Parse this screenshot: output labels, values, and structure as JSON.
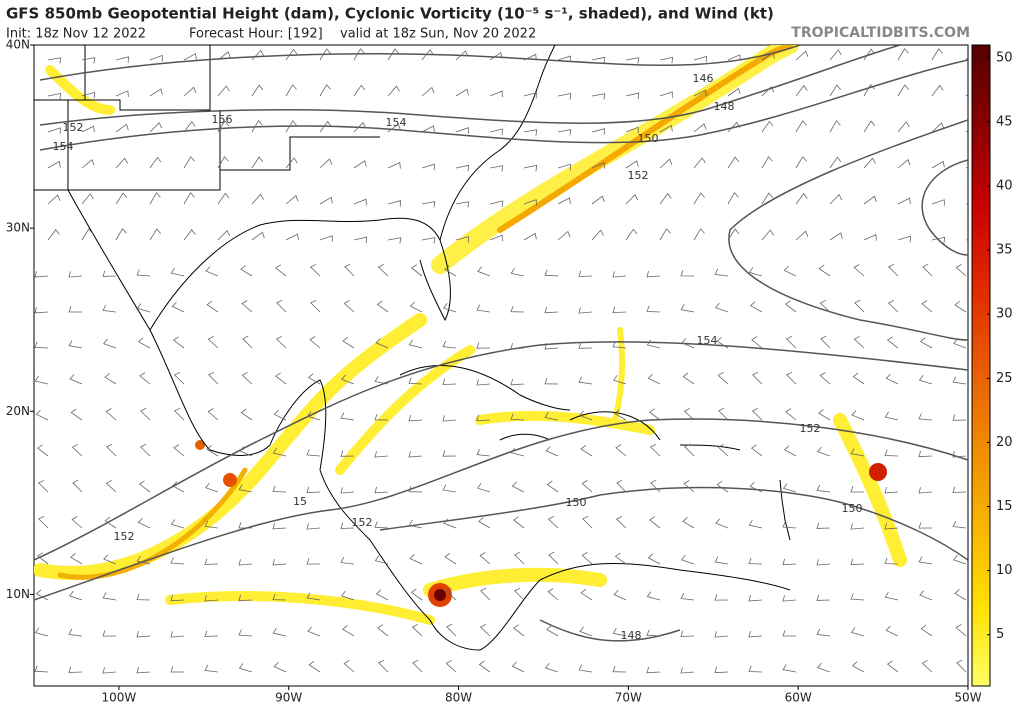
{
  "header": {
    "title": "GFS 850mb Geopotential Height (dam), Cyclonic Vorticity (10⁻⁵ s⁻¹, shaded), and Wind (kt)",
    "init": "Init: 18z Nov 12 2022",
    "forecast_hour": "Forecast Hour: [192]",
    "valid": "valid at 18z Sun, Nov 20 2022",
    "watermark": "TROPICALTIDBITS.COM"
  },
  "map": {
    "xlim": [
      -105,
      -50
    ],
    "ylim": [
      5,
      40
    ],
    "xticks": [
      {
        "value": -100,
        "label": "100W"
      },
      {
        "value": -90,
        "label": "90W"
      },
      {
        "value": -80,
        "label": "80W"
      },
      {
        "value": -70,
        "label": "70W"
      },
      {
        "value": -60,
        "label": "60W"
      },
      {
        "value": -50,
        "label": "50W"
      }
    ],
    "yticks": [
      {
        "value": 10,
        "label": "10N"
      },
      {
        "value": 20,
        "label": "20N"
      },
      {
        "value": 30,
        "label": "30N"
      },
      {
        "value": 40,
        "label": "40N"
      }
    ],
    "contour_labels": [
      146,
      148,
      150,
      152,
      154,
      156,
      152,
      154,
      154,
      152,
      150,
      150,
      152,
      152,
      148,
      15
    ]
  },
  "colorbar": {
    "lim": [
      1,
      51
    ],
    "ticks": [
      5,
      10,
      15,
      20,
      25,
      30,
      35,
      40,
      45,
      50
    ],
    "colors": [
      "#ffff66",
      "#ffe000",
      "#f7b500",
      "#f08a00",
      "#e85a00",
      "#e02800",
      "#c80000",
      "#8a0000",
      "#550000"
    ]
  }
}
